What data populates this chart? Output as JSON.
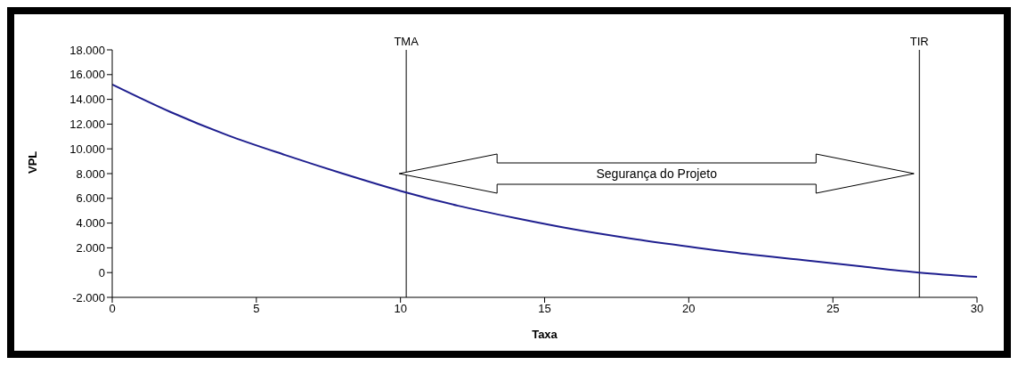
{
  "chart_data": {
    "type": "line",
    "xlabel": "Taxa",
    "ylabel": "VPL",
    "x": [
      0,
      2,
      4,
      6,
      8,
      10,
      12,
      14,
      16,
      18,
      20,
      22,
      24,
      26,
      28,
      30
    ],
    "series": [
      {
        "color": "#1f1f8f",
        "values": [
          15200,
          13000,
          11100,
          9500,
          8000,
          6600,
          5400,
          4400,
          3500,
          2750,
          2100,
          1500,
          1000,
          500,
          0,
          -350
        ]
      }
    ],
    "xlim": [
      0,
      30
    ],
    "xticks": [
      0,
      5,
      10,
      15,
      20,
      25,
      30
    ],
    "ylim": [
      -2000,
      18000
    ],
    "yticks": [
      {
        "value": -2000,
        "label": "-2.000"
      },
      0,
      {
        "value": 2000,
        "label": "2.000"
      },
      {
        "value": 4000,
        "label": "4.000"
      },
      {
        "value": 6000,
        "label": "6.000"
      },
      {
        "value": 8000,
        "label": "8.000"
      },
      {
        "value": 10000,
        "label": "10.000"
      },
      {
        "value": 12000,
        "label": "12.000"
      },
      {
        "value": 14000,
        "label": "14.000"
      },
      {
        "value": 16000,
        "label": "16.000"
      },
      {
        "value": 18000,
        "label": "18.000"
      }
    ],
    "ref_lines": [
      {
        "axis": "x",
        "value": 10.2,
        "label": "TMA",
        "color": "#000000"
      },
      {
        "axis": "x",
        "value": 28,
        "label": "TIR",
        "color": "#000000"
      }
    ],
    "annotations": [
      "Segurança do Projeto"
    ],
    "grid": false,
    "legend": false,
    "marker": "none",
    "line_style": "solid"
  }
}
